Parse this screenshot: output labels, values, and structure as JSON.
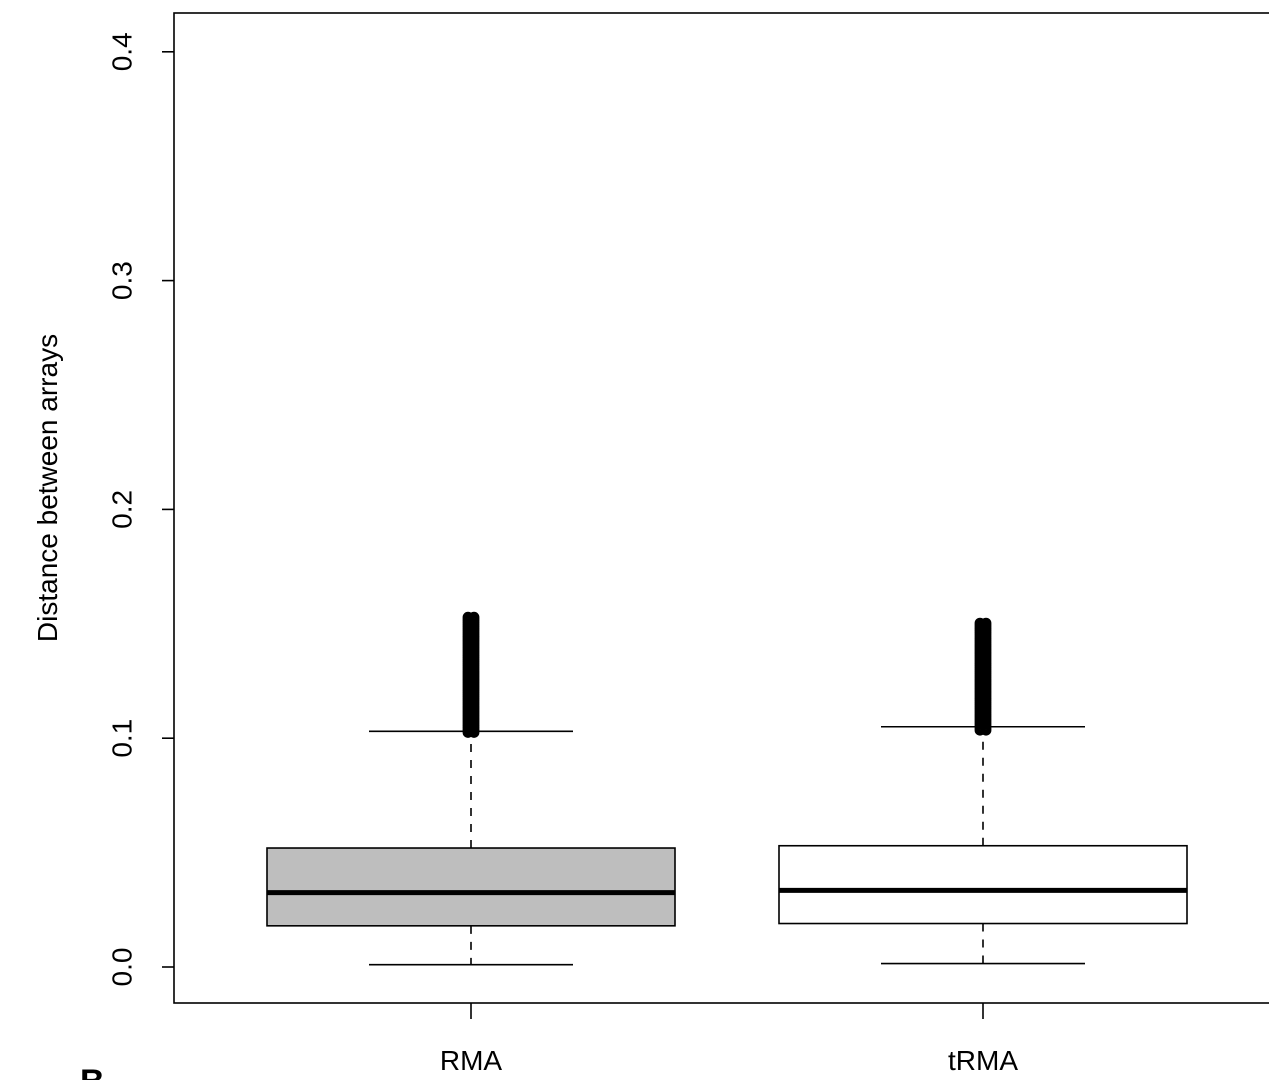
{
  "chart_data": {
    "type": "box",
    "title": "",
    "xlabel": "",
    "ylabel": "Distance between arrays",
    "ylim": [
      -0.016,
      0.415
    ],
    "y_ticks": [
      "0.0",
      "0.1",
      "0.2",
      "0.3",
      "0.4"
    ],
    "y_tick_values": [
      0.0,
      0.1,
      0.2,
      0.3,
      0.4
    ],
    "categories": [
      "RMA",
      "tRMA"
    ],
    "grid": false,
    "boxes": [
      {
        "category": "RMA",
        "whisker_low": 0.001,
        "q1": 0.018,
        "median": 0.0325,
        "q3": 0.052,
        "whisker_high": 0.103,
        "outlier_range": [
          0.1025,
          0.153
        ],
        "fill": "#bebebe"
      },
      {
        "category": "tRMA",
        "whisker_low": 0.0015,
        "q1": 0.019,
        "median": 0.0335,
        "q3": 0.053,
        "whisker_high": 0.105,
        "outlier_range": [
          0.1035,
          0.151
        ],
        "fill": "#ffffff"
      }
    ]
  },
  "panel_label": "B"
}
